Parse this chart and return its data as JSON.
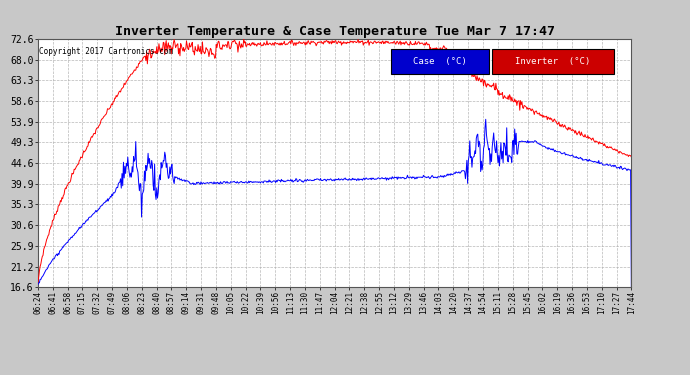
{
  "title": "Inverter Temperature & Case Temperature Tue Mar 7 17:47",
  "copyright": "Copyright 2017 Cartronics.com",
  "background_color": "#c8c8c8",
  "plot_bg_color": "#ffffff",
  "grid_color": "#b0b0b0",
  "yticks": [
    16.6,
    21.2,
    25.9,
    30.6,
    35.3,
    39.9,
    44.6,
    49.3,
    53.9,
    58.6,
    63.3,
    68.0,
    72.6
  ],
  "ylim": [
    16.6,
    72.6
  ],
  "legend_case_label": "Case  (°C)",
  "legend_inverter_label": "Inverter  (°C)",
  "case_color": "#0000ff",
  "inverter_color": "#ff0000",
  "legend_case_bg": "#0000cd",
  "legend_inverter_bg": "#cc0000",
  "xtick_labels": [
    "06:24",
    "06:41",
    "06:58",
    "07:15",
    "07:32",
    "07:49",
    "08:06",
    "08:23",
    "08:40",
    "08:57",
    "09:14",
    "09:31",
    "09:48",
    "10:05",
    "10:22",
    "10:39",
    "10:56",
    "11:13",
    "11:30",
    "11:47",
    "12:04",
    "12:21",
    "12:38",
    "12:55",
    "13:12",
    "13:29",
    "13:46",
    "14:03",
    "14:20",
    "14:37",
    "14:54",
    "15:11",
    "15:28",
    "15:45",
    "16:02",
    "16:19",
    "16:36",
    "16:53",
    "17:10",
    "17:27",
    "17:44"
  ]
}
